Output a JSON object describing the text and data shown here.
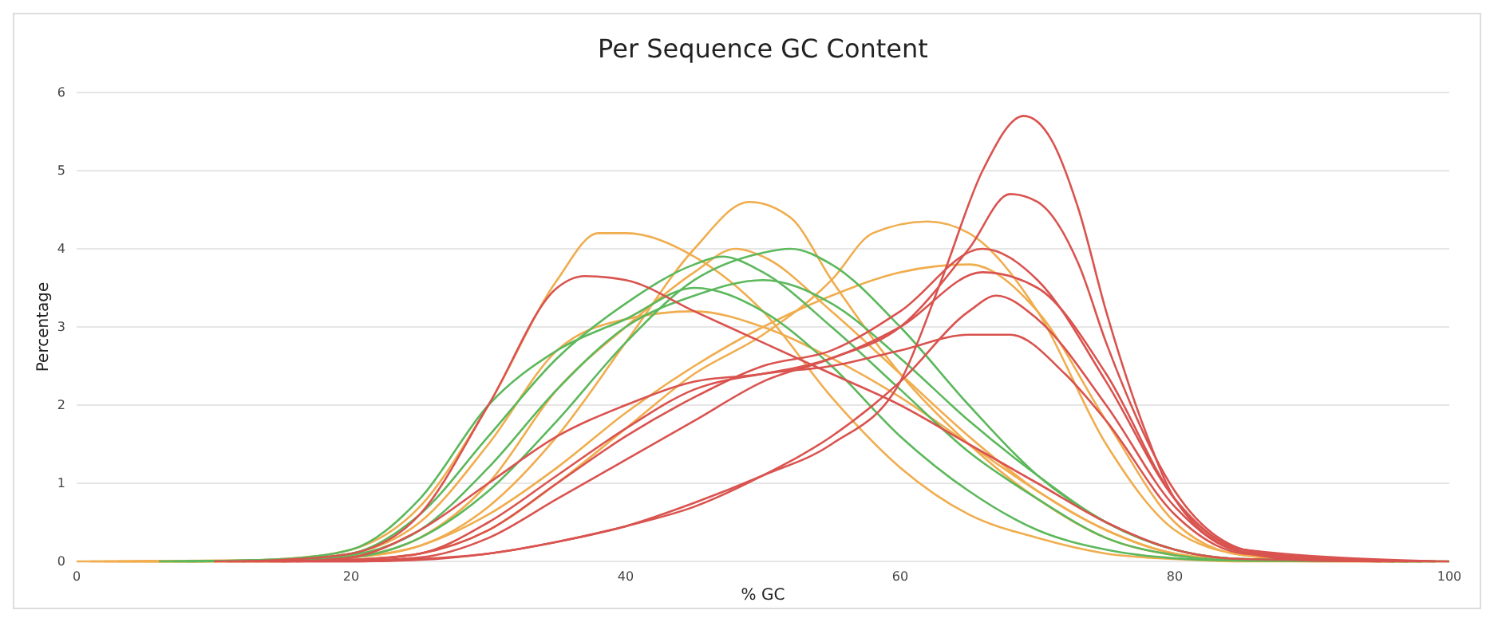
{
  "chart_data": {
    "type": "line",
    "title": "Per Sequence GC Content",
    "xlabel": "% GC",
    "ylabel": "Percentage",
    "xlim": [
      0,
      100
    ],
    "ylim": [
      0,
      6
    ],
    "xticks": [
      0,
      20,
      40,
      60,
      80,
      100
    ],
    "yticks": [
      0,
      1,
      2,
      3,
      4,
      5,
      6
    ],
    "grid": "y",
    "marker": "none",
    "line_style": "solid",
    "series": [
      {
        "color": "#f0ad4e",
        "x": [
          0,
          10,
          15,
          20,
          25,
          30,
          35,
          38,
          40,
          45,
          50,
          55,
          60,
          65,
          70,
          75,
          80,
          85,
          100
        ],
        "values": [
          0,
          0,
          0.03,
          0.15,
          0.7,
          2.0,
          3.6,
          4.2,
          4.2,
          3.9,
          3.2,
          2.1,
          1.2,
          0.6,
          0.3,
          0.1,
          0.03,
          0,
          0
        ]
      },
      {
        "color": "#f0ad4e",
        "x": [
          1,
          15,
          20,
          25,
          30,
          35,
          40,
          45,
          49,
          52,
          55,
          60,
          65,
          70,
          75,
          80,
          85,
          90,
          99
        ],
        "values": [
          0,
          0,
          0.05,
          0.2,
          0.7,
          1.6,
          2.8,
          4.0,
          4.6,
          4.4,
          3.6,
          2.4,
          1.5,
          0.8,
          0.3,
          0.08,
          0.02,
          0,
          0
        ]
      },
      {
        "color": "#f0ad4e",
        "x": [
          2,
          15,
          20,
          25,
          30,
          35,
          40,
          45,
          50,
          55,
          58,
          62,
          65,
          70,
          75,
          80,
          85,
          90,
          98
        ],
        "values": [
          0,
          0,
          0.02,
          0.1,
          0.4,
          1.0,
          1.7,
          2.4,
          2.9,
          3.6,
          4.2,
          4.35,
          4.2,
          3.2,
          1.5,
          0.4,
          0.08,
          0.01,
          0
        ]
      },
      {
        "color": "#f0ad4e",
        "x": [
          3,
          15,
          20,
          25,
          30,
          35,
          40,
          45,
          50,
          55,
          60,
          65,
          70,
          75,
          80,
          85,
          97
        ],
        "values": [
          0,
          0.02,
          0.1,
          0.5,
          1.5,
          2.7,
          3.1,
          3.2,
          3.0,
          2.6,
          2.1,
          1.5,
          0.9,
          0.4,
          0.1,
          0.02,
          0
        ]
      },
      {
        "color": "#f0ad4e",
        "x": [
          4,
          15,
          20,
          25,
          30,
          35,
          40,
          45,
          48,
          50,
          55,
          60,
          65,
          70,
          75,
          80,
          85,
          96
        ],
        "values": [
          0,
          0.01,
          0.06,
          0.3,
          1.0,
          2.2,
          3.0,
          3.7,
          4.0,
          3.9,
          3.2,
          2.4,
          1.6,
          0.9,
          0.4,
          0.1,
          0.02,
          0
        ]
      },
      {
        "color": "#f0ad4e",
        "x": [
          5,
          15,
          20,
          25,
          30,
          35,
          40,
          45,
          50,
          55,
          60,
          65,
          70,
          75,
          80,
          85,
          95
        ],
        "values": [
          0,
          0.01,
          0.05,
          0.2,
          0.6,
          1.2,
          1.9,
          2.5,
          3.0,
          3.4,
          3.7,
          3.8,
          3.2,
          1.8,
          0.5,
          0.08,
          0
        ]
      },
      {
        "color": "#5cb85c",
        "x": [
          6,
          15,
          20,
          25,
          30,
          35,
          40,
          45,
          50,
          52,
          55,
          60,
          65,
          70,
          75,
          80,
          85,
          100
        ],
        "values": [
          0,
          0.01,
          0.05,
          0.3,
          0.9,
          1.8,
          2.8,
          3.6,
          3.95,
          4.0,
          3.8,
          3.0,
          2.0,
          1.1,
          0.5,
          0.15,
          0.03,
          0
        ]
      },
      {
        "color": "#5cb85c",
        "x": [
          7,
          15,
          20,
          25,
          30,
          35,
          40,
          45,
          47,
          50,
          55,
          60,
          65,
          70,
          75,
          80,
          85,
          99
        ],
        "values": [
          0,
          0.02,
          0.1,
          0.6,
          1.6,
          2.6,
          3.3,
          3.8,
          3.9,
          3.7,
          3.0,
          2.2,
          1.4,
          0.8,
          0.3,
          0.08,
          0.01,
          0
        ]
      },
      {
        "color": "#5cb85c",
        "x": [
          8,
          15,
          20,
          25,
          30,
          35,
          40,
          45,
          50,
          55,
          60,
          65,
          70,
          75,
          80,
          85,
          98
        ],
        "values": [
          0,
          0.03,
          0.15,
          0.8,
          2.0,
          2.7,
          3.1,
          3.5,
          3.2,
          2.5,
          1.6,
          0.9,
          0.4,
          0.15,
          0.04,
          0.01,
          0
        ]
      },
      {
        "color": "#5cb85c",
        "x": [
          9,
          15,
          20,
          25,
          30,
          35,
          40,
          45,
          50,
          55,
          60,
          65,
          70,
          75,
          80,
          85,
          97
        ],
        "values": [
          0,
          0.02,
          0.08,
          0.4,
          1.2,
          2.2,
          3.0,
          3.4,
          3.6,
          3.3,
          2.6,
          1.8,
          1.1,
          0.5,
          0.15,
          0.03,
          0
        ]
      },
      {
        "color": "#d9534f",
        "x": [
          10,
          20,
          25,
          30,
          35,
          40,
          45,
          50,
          55,
          60,
          63,
          66,
          69,
          71,
          73,
          75,
          78,
          80,
          85,
          90,
          96
        ],
        "values": [
          0,
          0,
          0.03,
          0.1,
          0.25,
          0.45,
          0.75,
          1.1,
          1.5,
          2.3,
          3.6,
          5.0,
          5.7,
          5.4,
          4.5,
          3.2,
          1.6,
          0.8,
          0.12,
          0.01,
          0
        ]
      },
      {
        "color": "#d9534f",
        "x": [
          11,
          20,
          25,
          30,
          35,
          40,
          45,
          50,
          55,
          60,
          65,
          68,
          70,
          73,
          75,
          80,
          85,
          90,
          95
        ],
        "values": [
          0,
          0.01,
          0.05,
          0.3,
          0.8,
          1.3,
          1.8,
          2.3,
          2.6,
          3.0,
          4.0,
          4.7,
          4.6,
          3.8,
          2.8,
          0.9,
          0.15,
          0.02,
          0
        ]
      },
      {
        "color": "#d9534f",
        "x": [
          12,
          15,
          20,
          25,
          30,
          35,
          37,
          40,
          45,
          50,
          55,
          60,
          65,
          70,
          75,
          80,
          85,
          100
        ],
        "values": [
          0,
          0.02,
          0.1,
          0.6,
          2.0,
          3.5,
          3.65,
          3.6,
          3.2,
          2.8,
          2.4,
          2.0,
          1.5,
          1.0,
          0.5,
          0.15,
          0.03,
          0
        ]
      },
      {
        "color": "#d9534f",
        "x": [
          13,
          20,
          25,
          30,
          35,
          40,
          45,
          50,
          55,
          60,
          66,
          70,
          75,
          80,
          85,
          99
        ],
        "values": [
          0,
          0.02,
          0.1,
          0.4,
          1.0,
          1.6,
          2.1,
          2.5,
          2.7,
          3.2,
          4.0,
          3.6,
          2.3,
          0.8,
          0.15,
          0
        ]
      },
      {
        "color": "#d9534f",
        "x": [
          14,
          20,
          25,
          30,
          35,
          40,
          45,
          50,
          55,
          60,
          65,
          67,
          70,
          75,
          80,
          85,
          98
        ],
        "values": [
          0,
          0,
          0.02,
          0.1,
          0.25,
          0.45,
          0.7,
          1.1,
          1.6,
          2.3,
          3.2,
          3.4,
          3.1,
          2.0,
          0.7,
          0.12,
          0
        ]
      },
      {
        "color": "#d9534f",
        "x": [
          15,
          20,
          25,
          30,
          35,
          40,
          45,
          50,
          55,
          60,
          65,
          68,
          72,
          75,
          80,
          85,
          97
        ],
        "values": [
          0,
          0.02,
          0.1,
          0.5,
          1.1,
          1.7,
          2.2,
          2.4,
          2.5,
          2.7,
          2.9,
          2.9,
          2.4,
          1.8,
          0.6,
          0.1,
          0
        ]
      },
      {
        "color": "#d9534f",
        "x": [
          16,
          20,
          25,
          30,
          35,
          40,
          45,
          50,
          55,
          60,
          66,
          70,
          75,
          80,
          85,
          96
        ],
        "values": [
          0,
          0.05,
          0.4,
          1.0,
          1.6,
          2.0,
          2.3,
          2.4,
          2.6,
          3.0,
          3.7,
          3.5,
          2.4,
          0.8,
          0.15,
          0
        ]
      }
    ]
  }
}
